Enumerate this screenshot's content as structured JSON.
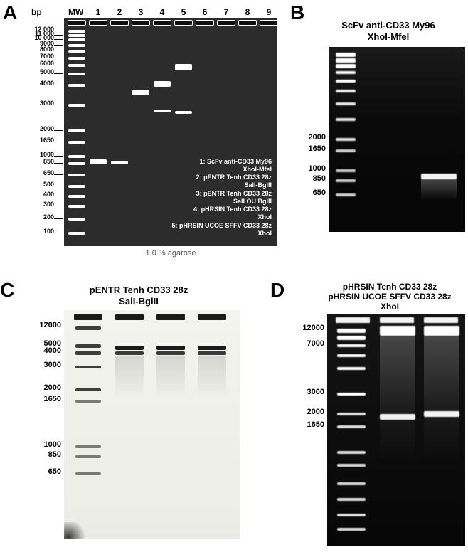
{
  "labels": {
    "A": "A",
    "B": "B",
    "C": "C",
    "D": "D"
  },
  "panelA": {
    "bp_header": "bp",
    "lane_header": "MW",
    "lanes": [
      "1",
      "2",
      "3",
      "4",
      "5",
      "6",
      "7",
      "8",
      "9"
    ],
    "ladder_values": [
      "12 000",
      "11 000",
      "10 000",
      "9000",
      "8000",
      "7000",
      "6000",
      "5000",
      "4000",
      "3000",
      "2000",
      "1650",
      "1000",
      "850",
      "650",
      "500",
      "400",
      "300",
      "200",
      "100"
    ],
    "caption": "1.0 % agarose",
    "legend": "1: ScFv anti-CD33 My96\nXhoI-MfeI\n2: pENTR Tenh CD33 28z\nSalI-BglII\n3: pENTR Tenh CD33 28z\nSalI OU BglII\n4: pHRSIN Tenh CD33 28z\nXhoI\n5: pHRSIN UCOE SFFV CD33 28z\nXhoI",
    "gel_bg": "#2c2c2c",
    "band_color": "#ffffff",
    "well_color": "#0e0e0e",
    "well_rim": "#ffffff"
  },
  "panelB": {
    "title_l1": "ScFv anti-CD33 My96",
    "title_l2": "XhoI-MfeI",
    "ladder_values": [
      "2000",
      "1650",
      "1000",
      "850",
      "650"
    ],
    "gel_bg": "#101010",
    "band_color": "#ffffff"
  },
  "panelC": {
    "title_l1": "pENTR Tenh CD33 28z",
    "title_l2": "SalI-BglII",
    "ladder_values": [
      "12000",
      "5000",
      "4000",
      "3000",
      "2000",
      "1650",
      "1000",
      "850",
      "650"
    ],
    "bg": "#f0f0ec"
  },
  "panelD": {
    "title_l1": "pHRSIN Tenh CD33 28z",
    "title_l2": "pHRSIN UCOE SFFV CD33 28z",
    "title_l3": "XhoI",
    "ladder_values": [
      "12000",
      "7000",
      "3000",
      "2000",
      "1650"
    ],
    "gel_bg": "#0c0c0c",
    "band_color": "#ffffff"
  },
  "fs": {
    "panel_label": 28,
    "bp_header": 12,
    "lane_num": 12,
    "tick_a": 10,
    "tick_small": 11,
    "title": 13,
    "caption": 11,
    "legend": 9
  }
}
